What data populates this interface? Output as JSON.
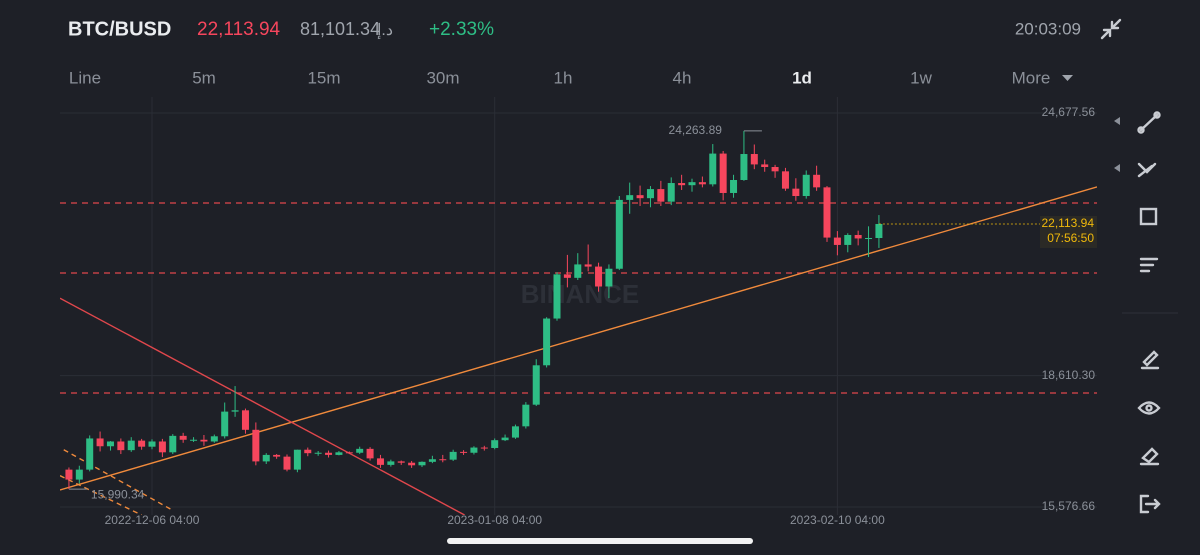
{
  "header": {
    "pair": "BTC/BUSD",
    "price": "22,113.94",
    "fiat": "81,101.34",
    "currency": "د.إ",
    "change": "+2.33%",
    "clock": "20:03:09"
  },
  "tabs": [
    "Line",
    "5m",
    "15m",
    "30m",
    "1h",
    "4h",
    "1d",
    "1w",
    "More"
  ],
  "active_tab": "1d",
  "chart_data": {
    "type": "candlestick",
    "watermark": "BINANCE",
    "open": [
      16440,
      16210,
      16440,
      17160,
      16980,
      17090,
      16890,
      17110,
      16970,
      17090,
      16840,
      17220,
      17130,
      17130,
      17090,
      17210,
      17780,
      17810,
      17360,
      16630,
      16780,
      16740,
      16440,
      16900,
      16820,
      16830,
      16780,
      16840,
      16830,
      16920,
      16700,
      16550,
      16630,
      16600,
      16540,
      16620,
      16680,
      16670,
      16850,
      16830,
      16950,
      16940,
      17120,
      17180,
      17440,
      17940,
      18850,
      19930,
      20950,
      20870,
      21180,
      21130,
      20670,
      21080,
      22670,
      22780,
      22710,
      22920,
      22630,
      23060,
      23010,
      23080,
      23030,
      23740,
      22830,
      23130,
      23730,
      23490,
      23430,
      23330,
      22930,
      22760,
      23250,
      22960,
      21800,
      21630,
      21860,
      21780,
      21790
    ],
    "high": [
      16490,
      16530,
      17230,
      17320,
      17100,
      17160,
      17190,
      17150,
      17140,
      17150,
      17260,
      17290,
      17190,
      17240,
      17250,
      17990,
      18370,
      17850,
      17530,
      16820,
      16800,
      16790,
      16900,
      16950,
      16870,
      16880,
      16870,
      16860,
      16970,
      16960,
      16780,
      16670,
      16650,
      16640,
      16630,
      16760,
      16780,
      16900,
      16890,
      16980,
      16990,
      17160,
      17250,
      17480,
      18000,
      18990,
      19960,
      21000,
      21400,
      21440,
      21640,
      21220,
      21180,
      22760,
      23070,
      23000,
      22990,
      23110,
      23190,
      23250,
      23160,
      23210,
      23960,
      23800,
      23250,
      24263.89,
      23950,
      23600,
      23480,
      23410,
      23170,
      23350,
      23460,
      22990,
      21950,
      21900,
      21960,
      22060,
      22320
    ],
    "low": [
      15990.34,
      16120,
      16400,
      16860,
      16880,
      16800,
      16850,
      16900,
      16910,
      16730,
      16800,
      17060,
      17080,
      16990,
      17060,
      17160,
      17660,
      17270,
      16540,
      16570,
      16690,
      16400,
      16380,
      16750,
      16760,
      16720,
      16770,
      16800,
      16800,
      16650,
      16480,
      16510,
      16550,
      16480,
      16500,
      16590,
      16610,
      16640,
      16780,
      16790,
      16880,
      16910,
      17100,
      17150,
      17390,
      17910,
      18800,
      19880,
      20650,
      20820,
      21020,
      20550,
      20400,
      21050,
      22350,
      22530,
      22500,
      22530,
      22550,
      22900,
      22860,
      22960,
      22980,
      22660,
      22720,
      23110,
      23380,
      23320,
      23180,
      22880,
      22650,
      22700,
      22880,
      21700,
      21390,
      21460,
      21620,
      21350,
      21560
    ],
    "close": [
      16210,
      16440,
      17160,
      16980,
      17090,
      16890,
      17110,
      16970,
      17090,
      16840,
      17220,
      17130,
      17130,
      17090,
      17210,
      17780,
      17810,
      17360,
      16630,
      16780,
      16740,
      16440,
      16900,
      16820,
      16830,
      16780,
      16840,
      16830,
      16920,
      16700,
      16550,
      16630,
      16600,
      16540,
      16620,
      16680,
      16670,
      16850,
      16830,
      16950,
      16940,
      17120,
      17180,
      17440,
      17940,
      18850,
      19930,
      20950,
      20870,
      21180,
      21130,
      20670,
      21080,
      22670,
      22780,
      22710,
      22920,
      22630,
      23060,
      23010,
      23080,
      23030,
      23740,
      22830,
      23130,
      23730,
      23490,
      23430,
      23330,
      22930,
      22760,
      23250,
      22960,
      21800,
      21630,
      21860,
      21780,
      21790,
      22113.94
    ],
    "xlim": [
      -0.86,
      99
    ],
    "xticks": [
      {
        "value": 8,
        "label": "2022-12-06 04:00"
      },
      {
        "value": 41,
        "label": "2023-01-08 04:00"
      },
      {
        "value": 74,
        "label": "2023-02-10 04:00"
      }
    ],
    "ylim": [
      15392,
      25047
    ],
    "yticks": [
      {
        "value": 24677.56,
        "label": "24,677.56"
      },
      {
        "value": 18610.3,
        "label": "18,610.30"
      },
      {
        "value": 15576.66,
        "label": "15,576.66"
      }
    ],
    "grid": true,
    "colors": {
      "up": "#2ebd85",
      "down": "#f6465d",
      "level": "#e0474c",
      "trend": "#f08a3c",
      "last": "#f0b90b"
    },
    "last_price": {
      "value": 22113.94,
      "label": "22,113.94",
      "countdown": "07:56:50"
    },
    "annotations": [
      {
        "label": "24,263.89",
        "index": 65,
        "field": "high"
      },
      {
        "label": "15,990.34",
        "index": 0,
        "field": "low"
      }
    ],
    "horizontal_lines": [
      22599,
      20982,
      18210
    ],
    "trend_lines": [
      {
        "points": [
          [
            -0.86,
            15970
          ],
          [
            99,
            22970
          ]
        ],
        "color": "#f08a3c",
        "dashed": false
      },
      {
        "points": [
          [
            -0.86,
            20400
          ],
          [
            38.1,
            15392
          ]
        ],
        "color": "#e0474c",
        "dashed": false
      },
      {
        "points": [
          [
            -0.5,
            16900
          ],
          [
            10,
            15500
          ]
        ],
        "color": "#f08a3c",
        "dashed": true
      },
      {
        "points": [
          [
            -0.86,
            16300
          ],
          [
            7,
            15392
          ]
        ],
        "color": "#f08a3c",
        "dashed": true
      }
    ]
  }
}
